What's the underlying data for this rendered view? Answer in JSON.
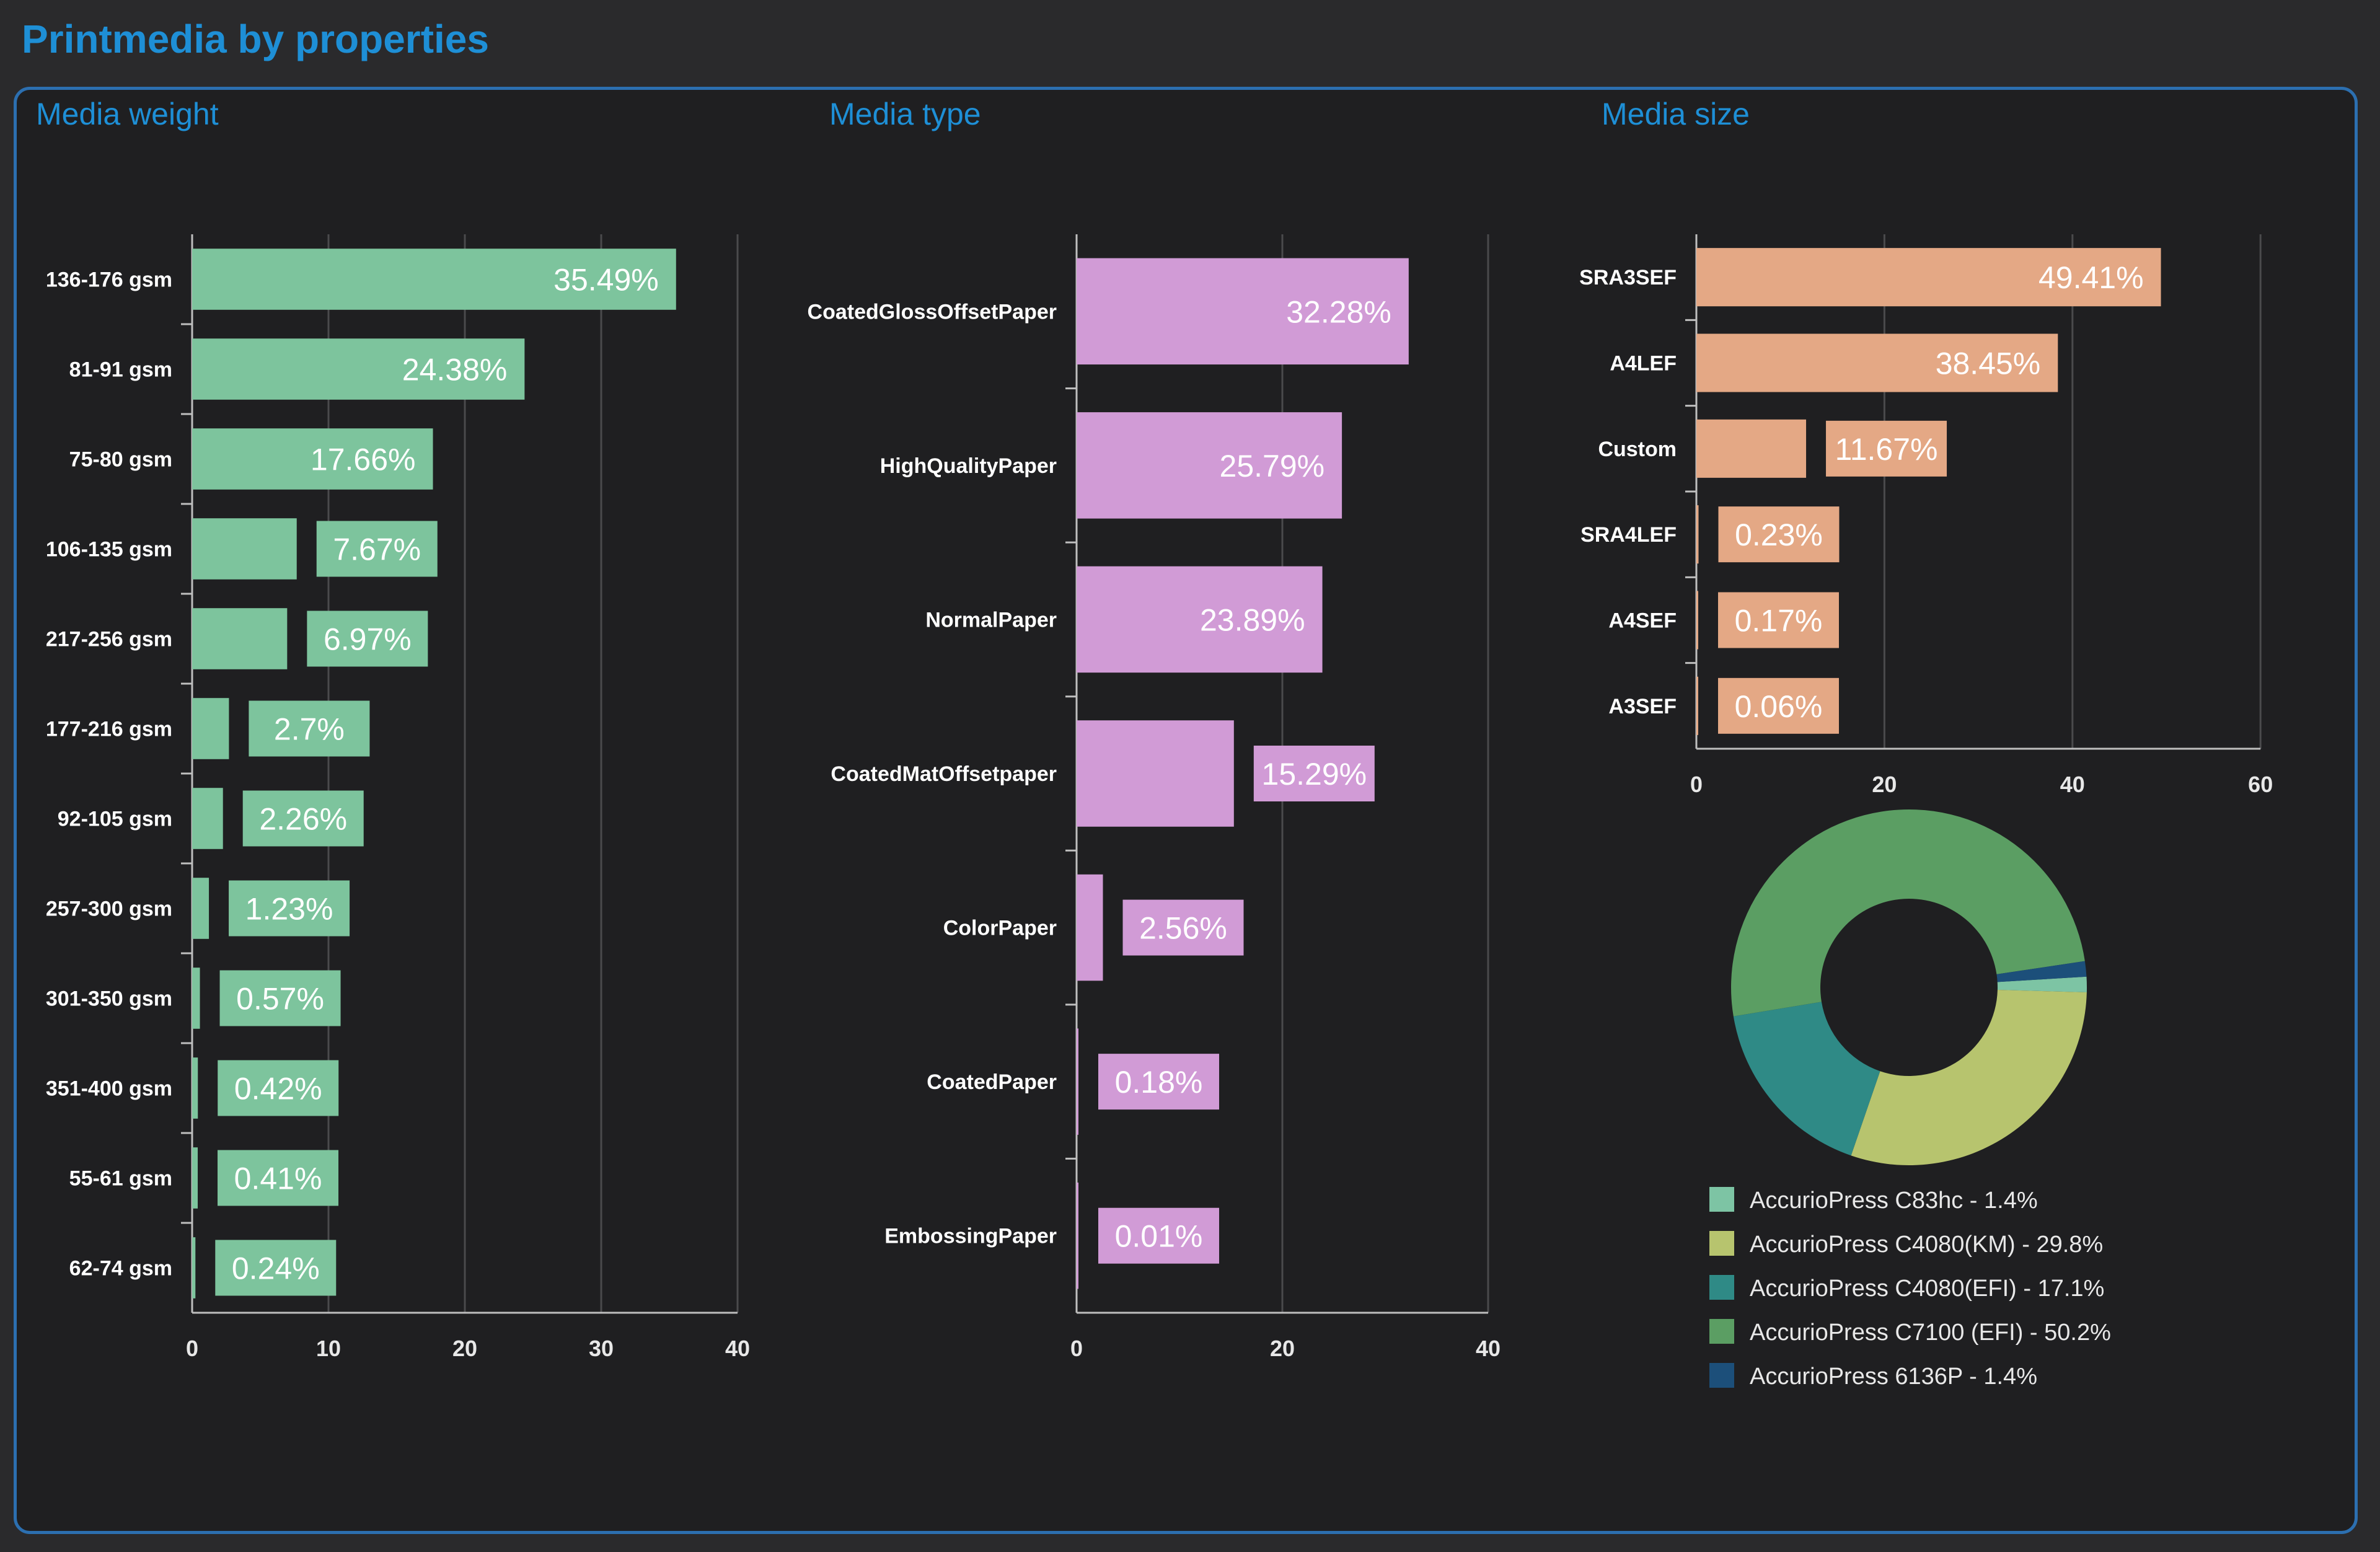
{
  "page": {
    "title": "Printmedia by properties"
  },
  "sections": {
    "weight": "Media weight",
    "type": "Media type",
    "size": "Media size"
  },
  "colors": {
    "weight": "#7dc49d",
    "type": "#d19bd6",
    "size": "#e4a885",
    "label_text": "#ffffff",
    "axis": "#bfbfbf",
    "grid": "#4a4a4c"
  },
  "chart_data": [
    {
      "id": "weight",
      "type": "bar",
      "orientation": "horizontal",
      "title": "Media weight",
      "categories": [
        "136-176 gsm",
        "81-91 gsm",
        "75-80 gsm",
        "106-135 gsm",
        "217-256 gsm",
        "177-216 gsm",
        "92-105 gsm",
        "257-300 gsm",
        "301-350 gsm",
        "351-400 gsm",
        "55-61 gsm",
        "62-74 gsm"
      ],
      "values": [
        35.49,
        24.38,
        17.66,
        7.67,
        6.97,
        2.7,
        2.26,
        1.23,
        0.57,
        0.42,
        0.41,
        0.24
      ],
      "labels": [
        "35.49%",
        "24.38%",
        "17.66%",
        "7.67%",
        "6.97%",
        "2.7%",
        "2.26%",
        "1.23%",
        "0.57%",
        "0.42%",
        "0.41%",
        "0.24%"
      ],
      "xlim": [
        0,
        40
      ],
      "ticks": [
        0,
        10,
        20,
        30,
        40
      ]
    },
    {
      "id": "type",
      "type": "bar",
      "orientation": "horizontal",
      "title": "Media type",
      "categories": [
        "CoatedGlossOffsetPaper",
        "HighQualityPaper",
        "NormalPaper",
        "CoatedMatOffsetpaper",
        "ColorPaper",
        "CoatedPaper",
        "EmbossingPaper"
      ],
      "values": [
        32.28,
        25.79,
        23.89,
        15.29,
        2.56,
        0.18,
        0.01
      ],
      "labels": [
        "32.28%",
        "25.79%",
        "23.89%",
        "15.29%",
        "2.56%",
        "0.18%",
        "0.01%"
      ],
      "xlim": [
        0,
        40
      ],
      "ticks": [
        0,
        20,
        40
      ]
    },
    {
      "id": "size",
      "type": "bar",
      "orientation": "horizontal",
      "title": "Media size",
      "categories": [
        "SRA3SEF",
        "A4LEF",
        "Custom",
        "SRA4LEF",
        "A4SEF",
        "A3SEF"
      ],
      "values": [
        49.41,
        38.45,
        11.67,
        0.23,
        0.17,
        0.06
      ],
      "labels": [
        "49.41%",
        "38.45%",
        "11.67%",
        "0.23%",
        "0.17%",
        "0.06%"
      ],
      "xlim": [
        0,
        60
      ],
      "ticks": [
        0,
        20,
        40,
        60
      ]
    },
    {
      "id": "printers",
      "type": "pie",
      "donut": true,
      "slices": [
        {
          "name": "AccurioPress C83hc - 1.4%",
          "value": 1.4,
          "color": "#7dc4a4"
        },
        {
          "name": "AccurioPress C4080(KM) - 29.8%",
          "value": 29.8,
          "color": "#b7c46e"
        },
        {
          "name": "AccurioPress C4080(EFI) - 17.1%",
          "value": 17.1,
          "color": "#2f8a86"
        },
        {
          "name": "AccurioPress C7100 (EFI) - 50.2%",
          "value": 50.2,
          "color": "#5b9e63"
        },
        {
          "name": "AccurioPress 6136P - 1.4%",
          "value": 1.4,
          "color": "#1c4f7a"
        }
      ]
    }
  ]
}
